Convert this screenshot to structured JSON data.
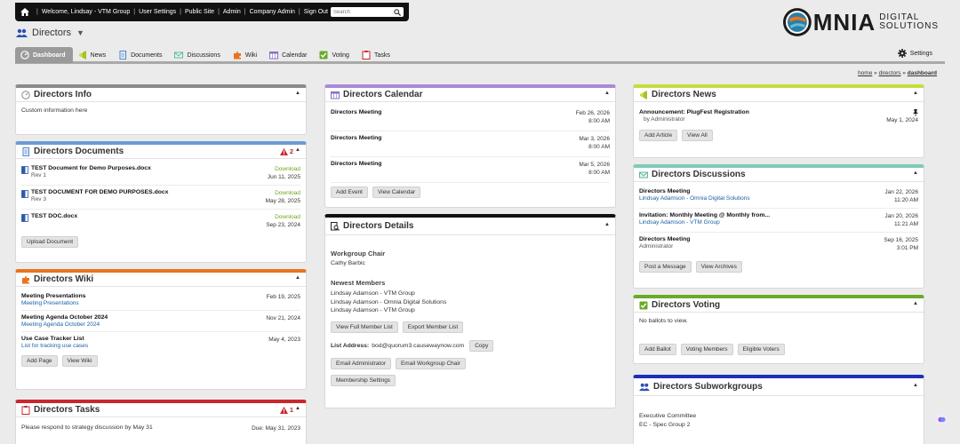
{
  "topbar": {
    "welcome": "Welcome, Lindsay - VTM Group",
    "links": [
      "User Settings",
      "Public Site",
      "Admin",
      "Company Admin",
      "Sign Out"
    ],
    "search_placeholder": "Search"
  },
  "logo": {
    "word": "MNIA",
    "line1": "DIGITAL",
    "line2": "SOLUTIONS"
  },
  "group": {
    "title": "Directors"
  },
  "tabs": [
    "Dashboard",
    "News",
    "Documents",
    "Discussions",
    "Wiki",
    "Calendar",
    "Voting",
    "Tasks"
  ],
  "settings_label": "Settings",
  "breadcrumb": {
    "home": "home",
    "directors": "directors",
    "current": "dashboard",
    "sep": "»"
  },
  "info": {
    "title": "Directors Info",
    "text": "Custom information here"
  },
  "documents": {
    "title": "Directors Documents",
    "alert_count": "2",
    "items": [
      {
        "name": "TEST Document for Demo Purposes.docx",
        "rev": "Rev 1",
        "action": "Download",
        "date": "Jun 11, 2025"
      },
      {
        "name": "TEST DOCUMENT FOR DEMO PURPOSES.docx",
        "rev": "Rev 3",
        "action": "Download",
        "date": "May 28, 2025"
      },
      {
        "name": "TEST DOC.docx",
        "rev": "",
        "action": "Download",
        "date": "Sep 23, 2024"
      }
    ],
    "upload_label": "Upload Document"
  },
  "wiki": {
    "title": "Directors Wiki",
    "items": [
      {
        "title": "Meeting Presentations",
        "sub": "Meeting Presentations",
        "date": "Feb 19, 2025"
      },
      {
        "title": "Meeting Agenda October 2024",
        "sub": "Meeting Agenda October 2024",
        "date": "Nov 21, 2024"
      },
      {
        "title": "Use Case Tracker List",
        "sub": "List for tracking use cases",
        "date": "May 4, 2023"
      }
    ],
    "add_label": "Add Page",
    "view_label": "View Wiki"
  },
  "tasks": {
    "title": "Directors Tasks",
    "alert_count": "1",
    "items": [
      {
        "text": "Please respond to strategy discussion by May 31",
        "due": "Due: May 31, 2023"
      }
    ]
  },
  "calendar": {
    "title": "Directors Calendar",
    "items": [
      {
        "title": "Directors Meeting",
        "date": "Feb 26, 2026",
        "time": "8:00 AM"
      },
      {
        "title": "Directors Meeting",
        "date": "Mar 3, 2026",
        "time": "8:00 AM"
      },
      {
        "title": "Directors Meeting",
        "date": "Mar 5, 2026",
        "time": "8:00 AM"
      }
    ],
    "add_label": "Add Event",
    "view_label": "View Calendar"
  },
  "details": {
    "title": "Directors Details",
    "chair_label": "Workgroup Chair",
    "chair_name": "Cathy Barbic",
    "members_label": "Newest Members",
    "members": [
      "Lindsay Adamson - VTM Group",
      "Lindsay Adamson - Omnia Digital Solutions",
      "Lindsay Adamson - VTM Group"
    ],
    "view_full_label": "View Full Member List",
    "export_label": "Export Member List",
    "list_address_label": "List Address:",
    "list_address": "bod@quorum3.causewaynow.com",
    "copy_label": "Copy",
    "email_admin_label": "Email Administrator",
    "email_chair_label": "Email Workgroup Chair",
    "membership_label": "Membership Settings"
  },
  "news": {
    "title": "Directors News",
    "items": [
      {
        "title": "Announcement: PlugFest Registration",
        "by": "by Administrator",
        "date": "May 1, 2024"
      }
    ],
    "add_label": "Add Article",
    "view_label": "View All"
  },
  "discussions": {
    "title": "Directors Discussions",
    "items": [
      {
        "title": "Directors Meeting",
        "sub": "Lindsay Adamson - Omnia Digital Solutions",
        "date": "Jan 22, 2026",
        "time": "11:20 AM",
        "link": true
      },
      {
        "title": "Invitation: Monthly Meeting @ Monthly from...",
        "sub": "Lindsay Adamson - VTM Group",
        "date": "Jan 20, 2026",
        "time": "11:21 AM",
        "link": true
      },
      {
        "title": "Directors Meeting",
        "sub": "Administrator",
        "date": "Sep 16, 2025",
        "time": "3:01 PM",
        "link": false
      }
    ],
    "post_label": "Post a Message",
    "archives_label": "View Archives"
  },
  "voting": {
    "title": "Directors Voting",
    "empty_text": "No ballots to view.",
    "add_label": "Add Ballot",
    "members_label": "Voting Members",
    "eligible_label": "Eligible Voters"
  },
  "subworkgroups": {
    "title": "Directors Subworkgroups",
    "items": [
      "Executive Committee",
      "EC - Spec Group 2"
    ]
  },
  "colors": {
    "info": "#8a8a8a",
    "documents": "#6b9bd2",
    "wiki": "#e8741e",
    "tasks": "#c8282d",
    "calendar": "#a98ad6",
    "details": "#111111",
    "news": "#c7dc3a",
    "discussions": "#7fcaba",
    "voting": "#6aaa2a",
    "subworkgroups": "#1e2fb8"
  }
}
